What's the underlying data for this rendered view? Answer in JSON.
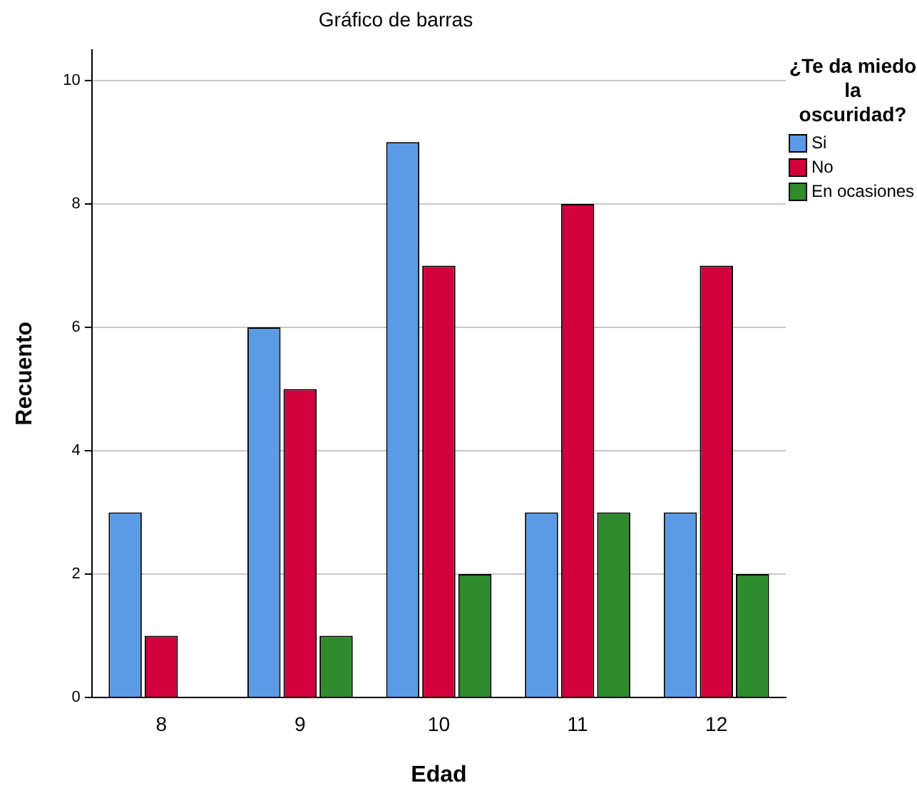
{
  "chart_data": {
    "type": "bar",
    "title": "Gráfico de barras",
    "xlabel": "Edad",
    "ylabel": "Recuento",
    "legend_title": "¿Te da miedo la oscuridad?",
    "categories": [
      "8",
      "9",
      "10",
      "11",
      "12"
    ],
    "series": [
      {
        "name": "Si",
        "color": "#5b9be6",
        "values": [
          3,
          6,
          9,
          3,
          3
        ]
      },
      {
        "name": "No",
        "color": "#d2003c",
        "values": [
          1,
          5,
          7,
          8,
          7
        ]
      },
      {
        "name": "En ocasiones",
        "color": "#2e8b2e",
        "values": [
          null,
          1,
          2,
          3,
          2
        ]
      }
    ],
    "ylim": [
      0,
      10.5
    ],
    "yticks": [
      0,
      2,
      4,
      6,
      8,
      10
    ],
    "grid": "y",
    "legend": "right"
  }
}
